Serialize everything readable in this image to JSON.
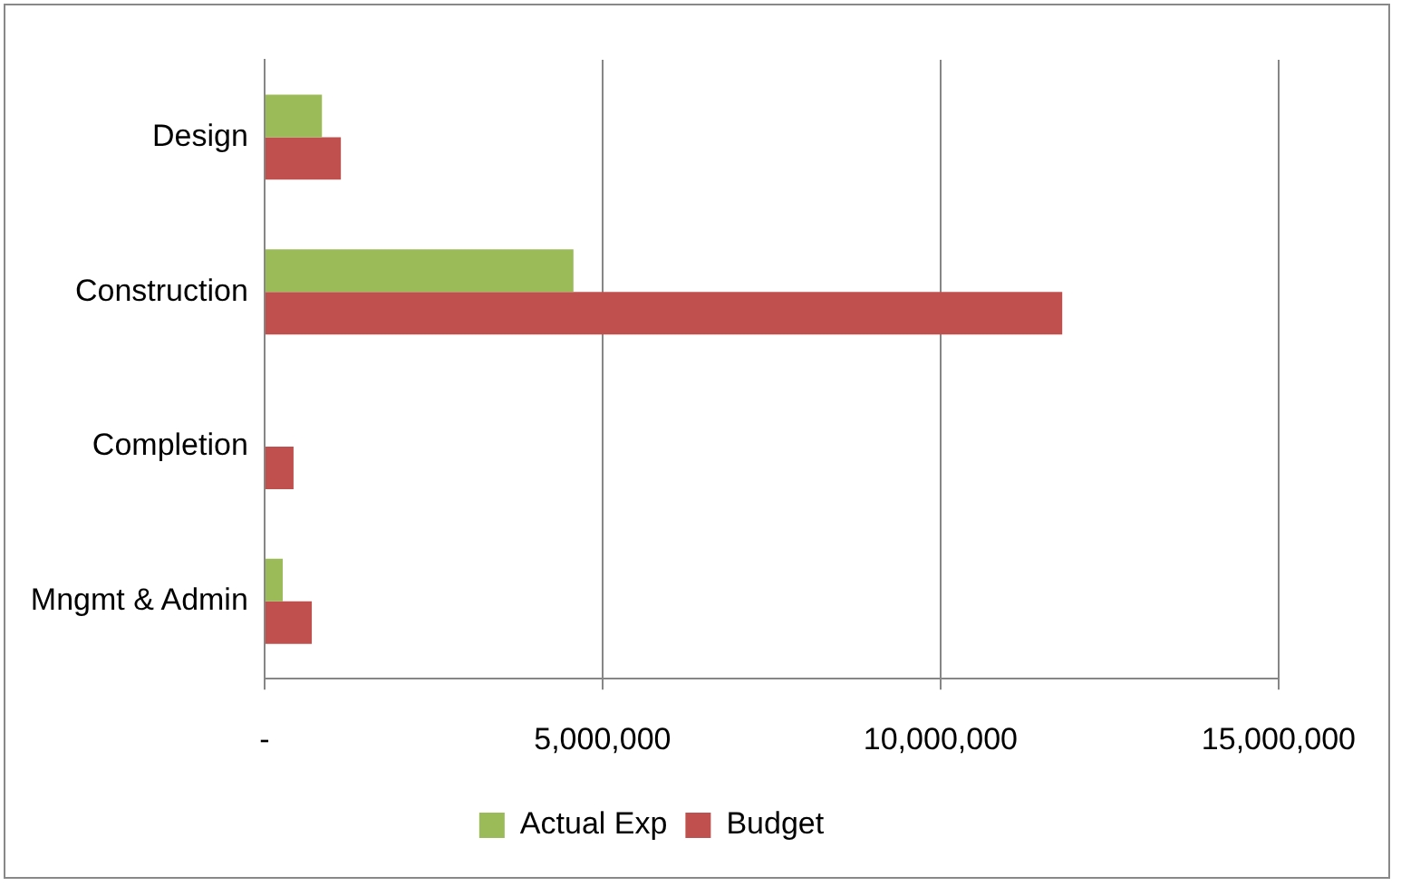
{
  "chart_data": {
    "type": "bar",
    "orientation": "horizontal",
    "categories": [
      "Design",
      "Construction",
      "Completion",
      "Mngmt & Admin"
    ],
    "series": [
      {
        "name": "Actual Exp",
        "color": "#9bbb59",
        "values": [
          850000,
          4570000,
          0,
          270000
        ]
      },
      {
        "name": "Budget",
        "color": "#c0504d",
        "values": [
          1130000,
          11800000,
          430000,
          700000
        ]
      }
    ],
    "xlim": [
      0,
      15000000
    ],
    "xticks": [
      {
        "value": 0,
        "label": "-"
      },
      {
        "value": 5000000,
        "label": "5,000,000"
      },
      {
        "value": 10000000,
        "label": "10,000,000"
      },
      {
        "value": 15000000,
        "label": "15,000,000"
      }
    ],
    "grid": "x",
    "legend": "bottom"
  }
}
